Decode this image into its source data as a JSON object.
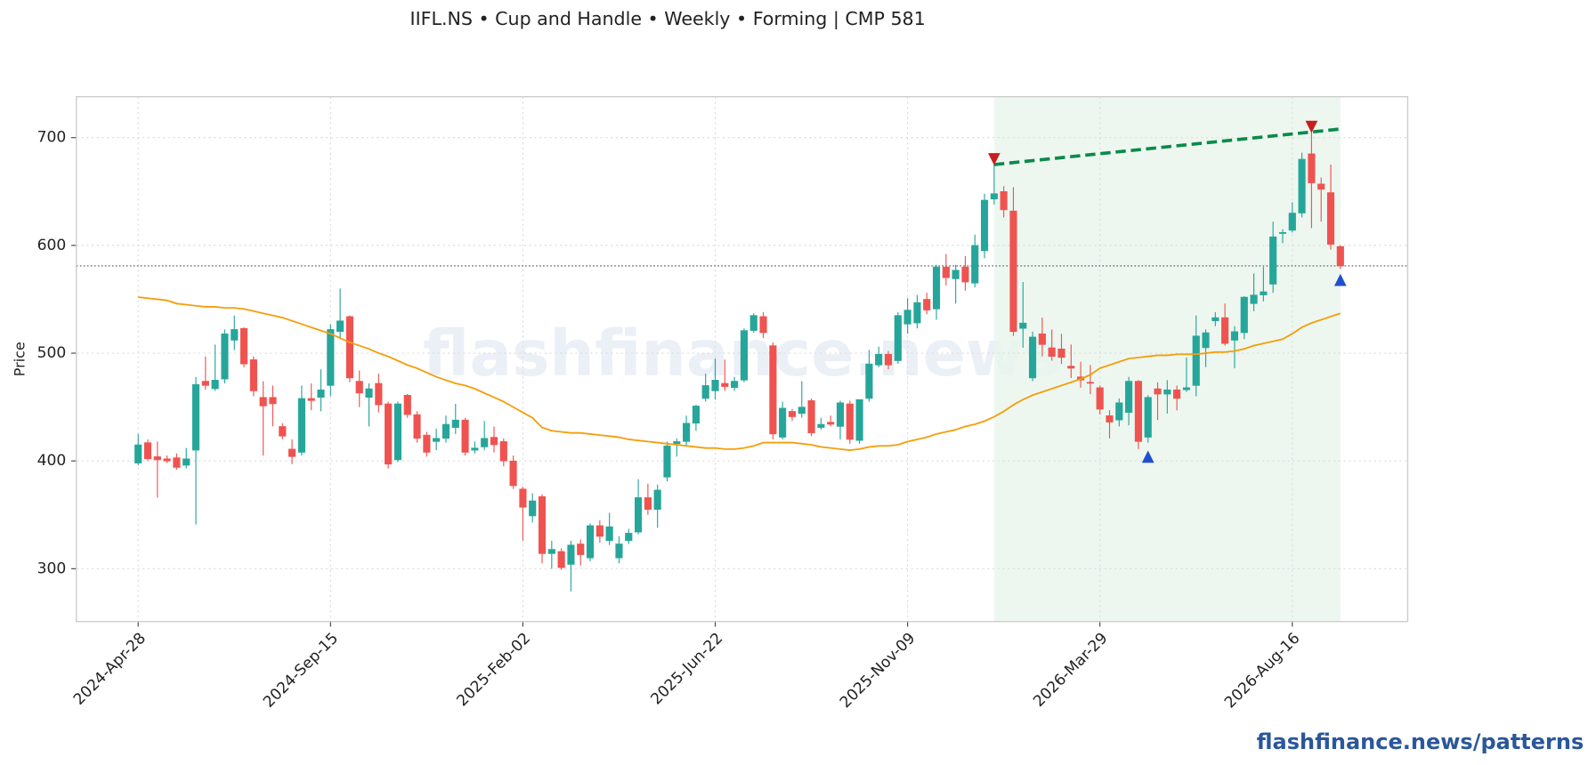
{
  "chart_data": {
    "type": "candlestick",
    "title": "IIFL.NS  •  Cup and Handle  •  Weekly  •  Forming  |  CMP 581",
    "y_label": "Price",
    "watermark": "flashfinance.news",
    "footer": "flashfinance.news/patterns",
    "x": [
      "2024-Apr-28",
      "2024-May-05",
      "2024-May-12",
      "2024-May-19",
      "2024-May-26",
      "2024-Jun-02",
      "2024-Jun-09",
      "2024-Jun-16",
      "2024-Jun-23",
      "2024-Jun-30",
      "2024-Jul-07",
      "2024-Jul-14",
      "2024-Jul-21",
      "2024-Jul-28",
      "2024-Aug-04",
      "2024-Aug-11",
      "2024-Aug-18",
      "2024-Aug-25",
      "2024-Sep-01",
      "2024-Sep-08",
      "2024-Sep-15",
      "2024-Sep-22",
      "2024-Sep-29",
      "2024-Oct-06",
      "2024-Oct-13",
      "2024-Oct-20",
      "2024-Oct-27",
      "2024-Nov-03",
      "2024-Nov-10",
      "2024-Nov-17",
      "2024-Nov-24",
      "2024-Dec-01",
      "2024-Dec-08",
      "2024-Dec-15",
      "2024-Dec-22",
      "2024-Dec-29",
      "2025-Jan-05",
      "2025-Jan-12",
      "2025-Jan-19",
      "2025-Jan-26",
      "2025-Feb-02",
      "2025-Feb-09",
      "2025-Feb-16",
      "2025-Feb-23",
      "2025-Mar-02",
      "2025-Mar-09",
      "2025-Mar-16",
      "2025-Mar-23",
      "2025-Mar-30",
      "2025-Apr-06",
      "2025-Apr-13",
      "2025-Apr-20",
      "2025-Apr-27",
      "2025-May-04",
      "2025-May-11",
      "2025-May-18",
      "2025-May-25",
      "2025-Jun-01",
      "2025-Jun-08",
      "2025-Jun-15",
      "2025-Jun-22",
      "2025-Jun-29",
      "2025-Jul-06",
      "2025-Jul-13",
      "2025-Jul-20",
      "2025-Jul-27",
      "2025-Aug-03",
      "2025-Aug-10",
      "2025-Aug-17",
      "2025-Aug-24",
      "2025-Aug-31",
      "2025-Sep-07",
      "2025-Sep-14",
      "2025-Sep-21",
      "2025-Sep-28",
      "2025-Oct-05",
      "2025-Oct-12",
      "2025-Oct-19",
      "2025-Oct-26",
      "2025-Nov-02",
      "2025-Nov-09",
      "2025-Nov-16",
      "2025-Nov-23",
      "2025-Nov-30",
      "2025-Dec-07",
      "2025-Dec-14",
      "2025-Dec-21",
      "2025-Dec-28",
      "2026-Jan-04",
      "2026-Jan-11",
      "2026-Jan-18",
      "2026-Jan-25",
      "2026-Feb-01",
      "2026-Feb-08",
      "2026-Feb-15",
      "2026-Feb-22",
      "2026-Mar-01",
      "2026-Mar-08",
      "2026-Mar-15",
      "2026-Mar-22",
      "2026-Mar-29",
      "2026-Apr-05",
      "2026-Apr-12",
      "2026-Apr-19",
      "2026-Apr-26",
      "2026-May-03",
      "2026-May-10",
      "2026-May-17",
      "2026-May-24",
      "2026-May-31",
      "2026-Jun-07",
      "2026-Jun-14",
      "2026-Jun-21",
      "2026-Jun-28",
      "2026-Jul-05",
      "2026-Jul-12",
      "2026-Jul-19",
      "2026-Jul-26",
      "2026-Aug-02",
      "2026-Aug-09",
      "2026-Aug-16",
      "2026-Aug-23",
      "2026-Aug-30",
      "2026-Sep-06",
      "2026-Sep-13",
      "2026-Sep-20"
    ],
    "open": [
      398,
      417,
      404,
      402,
      403,
      396,
      410,
      474,
      467,
      476,
      512,
      523,
      494,
      459,
      459,
      432,
      411,
      408,
      458,
      459,
      470,
      520,
      534,
      474,
      459,
      472,
      453,
      401,
      461,
      443,
      424,
      418,
      421,
      431,
      438,
      410,
      413,
      422,
      418,
      400,
      374,
      349,
      367,
      314,
      316,
      304,
      323,
      310,
      340,
      326,
      310,
      326,
      334,
      366,
      355,
      385,
      416,
      418,
      435,
      458,
      465,
      472,
      468,
      475,
      521,
      534,
      507,
      422,
      446,
      444,
      456,
      431,
      436,
      432,
      453,
      419,
      458,
      489,
      499,
      493,
      527,
      528,
      550,
      541,
      580,
      569,
      580,
      565,
      595,
      643,
      650,
      632,
      523,
      477,
      518,
      505,
      504,
      488,
      478,
      473,
      468,
      442,
      438,
      445,
      474,
      422,
      467,
      462,
      466,
      466,
      470,
      505,
      530,
      533,
      512,
      519,
      546,
      554,
      564,
      611,
      614,
      630,
      685,
      657,
      649,
      599
    ],
    "high": [
      425,
      420,
      418,
      405,
      407,
      412,
      478,
      497,
      508,
      522,
      535,
      524,
      497,
      474,
      470,
      435,
      420,
      470,
      472,
      485,
      527,
      560,
      535,
      484,
      472,
      481,
      455,
      455,
      462,
      446,
      427,
      430,
      442,
      453,
      440,
      418,
      437,
      432,
      421,
      405,
      376,
      370,
      369,
      326,
      319,
      326,
      327,
      342,
      345,
      352,
      330,
      337,
      383,
      379,
      378,
      418,
      421,
      442,
      452,
      481,
      495,
      494,
      478,
      523,
      537,
      538,
      510,
      455,
      448,
      474,
      458,
      440,
      442,
      456,
      456,
      457,
      503,
      506,
      502,
      538,
      551,
      554,
      556,
      582,
      592,
      582,
      590,
      610,
      648,
      676,
      655,
      654,
      566,
      520,
      533,
      522,
      518,
      508,
      492,
      489,
      470,
      447,
      458,
      478,
      475,
      461,
      473,
      475,
      470,
      496,
      535,
      522,
      538,
      546,
      525,
      553,
      574,
      580,
      622,
      615,
      640,
      686,
      705,
      663,
      675,
      600
    ],
    "low": [
      396,
      400,
      366,
      398,
      392,
      393,
      341,
      466,
      465,
      472,
      503,
      487,
      460,
      405,
      432,
      420,
      397,
      405,
      447,
      446,
      460,
      513,
      473,
      450,
      432,
      445,
      393,
      399,
      440,
      417,
      404,
      410,
      417,
      425,
      405,
      407,
      410,
      408,
      395,
      374,
      326,
      343,
      305,
      300,
      299,
      279,
      303,
      307,
      324,
      322,
      305,
      323,
      332,
      350,
      338,
      381,
      404,
      414,
      428,
      455,
      457,
      465,
      465,
      473,
      519,
      514,
      420,
      420,
      437,
      440,
      423,
      429,
      432,
      420,
      416,
      416,
      455,
      487,
      485,
      490,
      518,
      523,
      536,
      531,
      563,
      546,
      558,
      561,
      588,
      638,
      626,
      516,
      505,
      474,
      497,
      493,
      490,
      477,
      468,
      462,
      443,
      421,
      432,
      433,
      411,
      417,
      438,
      444,
      447,
      464,
      460,
      487,
      525,
      507,
      486,
      513,
      539,
      548,
      556,
      602,
      612,
      626,
      616,
      622,
      596,
      578
    ],
    "close": [
      415,
      402,
      401,
      400,
      394,
      402,
      471,
      470,
      475,
      518,
      522,
      490,
      465,
      451,
      453,
      423,
      404,
      458,
      456,
      466,
      522,
      530,
      477,
      463,
      467,
      452,
      397,
      453,
      443,
      421,
      408,
      421,
      434,
      438,
      408,
      412,
      421,
      415,
      400,
      377,
      357,
      363,
      314,
      318,
      301,
      322,
      313,
      340,
      330,
      339,
      323,
      333,
      366,
      355,
      373,
      414,
      418,
      435,
      451,
      470,
      475,
      469,
      474,
      521,
      535,
      519,
      425,
      449,
      441,
      450,
      426,
      434,
      434,
      454,
      420,
      457,
      490,
      499,
      489,
      535,
      540,
      547,
      540,
      580,
      570,
      577,
      566,
      600,
      642,
      648,
      633,
      520,
      528,
      515,
      508,
      497,
      496,
      486,
      475,
      472,
      448,
      436,
      454,
      474,
      418,
      459,
      462,
      466,
      458,
      468,
      516,
      519,
      533,
      509,
      520,
      552,
      554,
      557,
      608,
      612,
      630,
      680,
      658,
      652,
      601,
      581
    ],
    "up_color": "#26a69a",
    "down_color": "#ef5350",
    "moving_average": {
      "color": "#f59e0b",
      "values": [
        552,
        551,
        550,
        549,
        546,
        545,
        544,
        543,
        543,
        542,
        542,
        541,
        539,
        537,
        535,
        533,
        530,
        527,
        524,
        521,
        518,
        514,
        510,
        507,
        504,
        500,
        497,
        493,
        489,
        486,
        482,
        478,
        475,
        472,
        470,
        467,
        463,
        459,
        455,
        450,
        445,
        440,
        431,
        428,
        427,
        426,
        426,
        425,
        424,
        423,
        422,
        420,
        419,
        418,
        417,
        416,
        415,
        414,
        413,
        412,
        412,
        411,
        411,
        412,
        414,
        417,
        417,
        417,
        417,
        416,
        415,
        413,
        412,
        411,
        410,
        411,
        413,
        414,
        414,
        415,
        418,
        420,
        422,
        425,
        427,
        429,
        432,
        434,
        437,
        441,
        446,
        452,
        457,
        461,
        464,
        467,
        470,
        473,
        476,
        480,
        486,
        489,
        492,
        495,
        496,
        497,
        498,
        498,
        499,
        499,
        499,
        500,
        501,
        501,
        502,
        504,
        507,
        509,
        511,
        513,
        518,
        524,
        528,
        531,
        534,
        537
      ]
    },
    "cmp": 581,
    "pattern_zone": {
      "start": "2026-Jan-11",
      "end": "2026-Sep-20",
      "color": "#e8f5ec"
    },
    "resistance": {
      "x": [
        "2026-Jan-11",
        "2026-Sep-20"
      ],
      "y": [
        675,
        708
      ],
      "color": "#0a8a4a"
    },
    "peaks": {
      "x": [
        "2026-Jan-11",
        "2026-Aug-30"
      ],
      "y": [
        680,
        710
      ],
      "color": "#c81e1e"
    },
    "troughs": {
      "x": [
        "2026-May-03",
        "2026-Sep-20"
      ],
      "y": [
        404,
        568
      ],
      "color": "#1f4fcf"
    },
    "xlim": [
      "2024-Mar-14",
      "2026-Nov-08"
    ],
    "ylim": [
      251,
      738
    ],
    "xticks": [
      "2024-Apr-28",
      "2024-Sep-15",
      "2025-Feb-02",
      "2025-Jun-22",
      "2025-Nov-09",
      "2026-Mar-29",
      "2026-Aug-16"
    ],
    "yticks": [
      300,
      400,
      500,
      600,
      700
    ],
    "grid": true
  }
}
